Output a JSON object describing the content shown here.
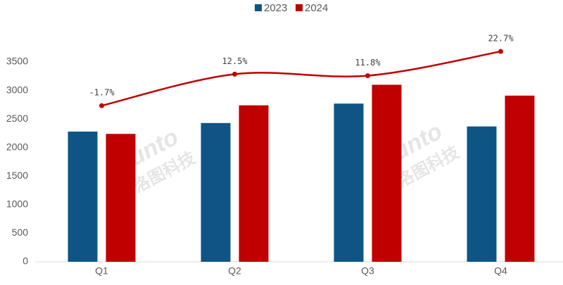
{
  "chart_data": {
    "type": "bar",
    "categories": [
      "Q1",
      "Q2",
      "Q3",
      "Q4"
    ],
    "series": [
      {
        "name": "2023",
        "color": "#0e5586",
        "values": [
          2280,
          2430,
          2770,
          2370
        ]
      },
      {
        "name": "2024",
        "color": "#c00000",
        "values": [
          2240,
          2740,
          3100,
          2910
        ]
      },
      {
        "type": "line",
        "axis": "y2",
        "color": "#c00000",
        "values": [
          -1.7,
          12.5,
          11.8,
          22.7
        ],
        "value_labels": [
          "-1.7%",
          "12.5%",
          "11.8%",
          "22.7%"
        ]
      }
    ],
    "ylim": [
      0,
      3500
    ],
    "yticks": [
      0,
      500,
      1000,
      1500,
      2000,
      2500,
      3000,
      3500
    ],
    "y2lim": [
      -72,
      18
    ],
    "grid": false,
    "legend": "top",
    "watermark": [
      "Runto",
      "洛图科技"
    ]
  }
}
